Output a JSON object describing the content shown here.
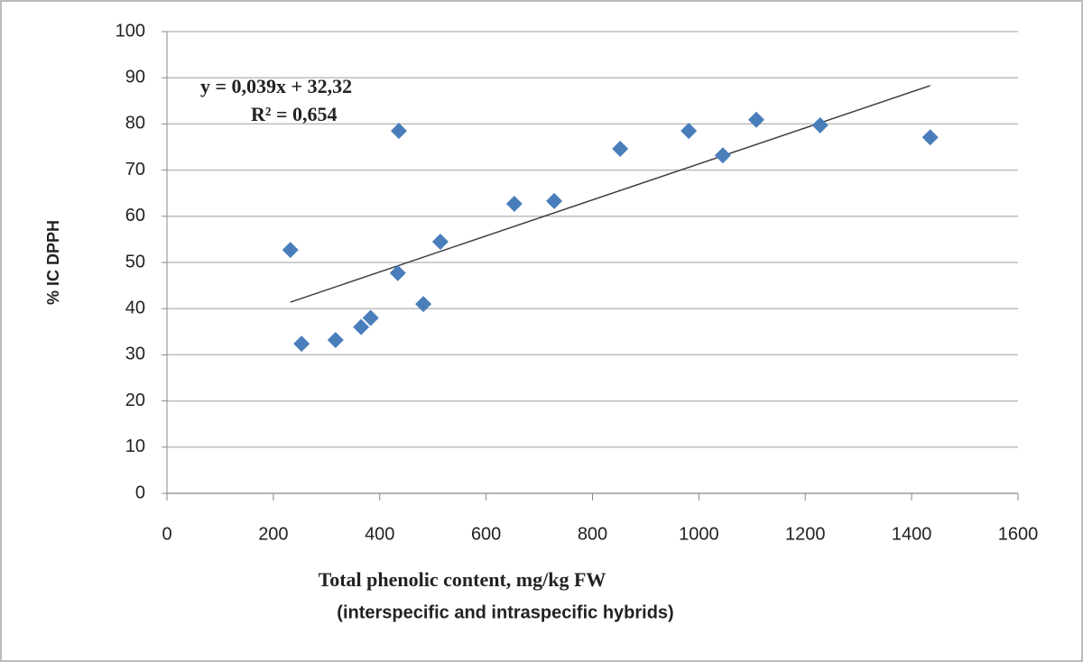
{
  "chart_data": {
    "type": "scatter",
    "x_label": [
      "Total phenolic content, mg/kg FW",
      "(interspecific and intraspecific hybrids)"
    ],
    "y_label": "% IC DPPH",
    "annotations": [
      "y = 0,039x + 32,32",
      "R² = 0,654"
    ],
    "series": [
      {
        "color": "#4a7ebb",
        "x": [
          232,
          253,
          317,
          365,
          383,
          434,
          436,
          482,
          514,
          653,
          728,
          852,
          981,
          1045,
          1108,
          1228,
          1435
        ],
        "values": [
          52.7,
          32.4,
          33.2,
          36,
          38,
          47.7,
          78.5,
          41,
          54.5,
          62.7,
          63.3,
          74.6,
          78.5,
          73.2,
          80.9,
          79.7,
          77.1
        ]
      }
    ],
    "trendline": {
      "color": "#404040",
      "x": [
        232,
        1435
      ],
      "values": [
        41.4,
        88.3
      ]
    },
    "xlim": [
      0,
      1600
    ],
    "xticks": [
      0,
      200,
      400,
      600,
      800,
      1000,
      1200,
      1400,
      1600
    ],
    "ylim": [
      0,
      100
    ],
    "yticks": [
      0,
      10,
      20,
      30,
      40,
      50,
      60,
      70,
      80,
      90,
      100
    ],
    "grid": true
  }
}
